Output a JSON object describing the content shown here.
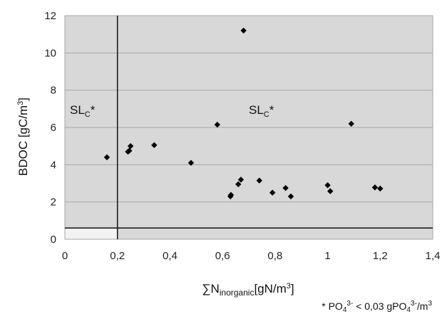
{
  "chart_data": {
    "type": "scatter",
    "xlabel_symbol": "∑N",
    "xlabel_sub": "inorganic",
    "xlabel_unit": "[gN/m",
    "xlabel_sup": "3",
    "xlabel_close": "]",
    "ylabel_main": "BDOC [gC/m",
    "ylabel_sup": "3",
    "ylabel_close": "]",
    "xlim": [
      0,
      1.4
    ],
    "ylim": [
      0,
      12
    ],
    "xticks": [
      "0",
      "0,2",
      "0,4",
      "0,6",
      "0,8",
      "1",
      "1,2",
      "1,4"
    ],
    "yticks": [
      "0",
      "2",
      "4",
      "6",
      "8",
      "10",
      "12"
    ],
    "grid": true,
    "threshold_x": 0.2,
    "threshold_y": 0.6,
    "regions": [
      {
        "label": "SL",
        "sub": "C",
        "suffix": "*"
      },
      {
        "label": "SL",
        "sub": "C",
        "suffix": "*"
      }
    ],
    "footnote": {
      "prefix": "* PO",
      "sub1": "4",
      "sup1": "3-",
      "mid": " < 0,03 gPO",
      "sub2": "4",
      "sup2": "3-",
      "end": "/m",
      "sup3": "3"
    },
    "points": [
      {
        "x": 0.16,
        "y": 4.4
      },
      {
        "x": 0.24,
        "y": 4.7
      },
      {
        "x": 0.245,
        "y": 4.75
      },
      {
        "x": 0.25,
        "y": 5.0
      },
      {
        "x": 0.34,
        "y": 5.05
      },
      {
        "x": 0.48,
        "y": 4.1
      },
      {
        "x": 0.58,
        "y": 6.15
      },
      {
        "x": 0.63,
        "y": 2.3
      },
      {
        "x": 0.632,
        "y": 2.38
      },
      {
        "x": 0.66,
        "y": 2.95
      },
      {
        "x": 0.67,
        "y": 3.2
      },
      {
        "x": 0.68,
        "y": 11.2
      },
      {
        "x": 0.74,
        "y": 3.15
      },
      {
        "x": 0.79,
        "y": 2.5
      },
      {
        "x": 0.84,
        "y": 2.75
      },
      {
        "x": 0.86,
        "y": 2.3
      },
      {
        "x": 1.0,
        "y": 2.9
      },
      {
        "x": 1.01,
        "y": 2.58
      },
      {
        "x": 1.09,
        "y": 6.2
      },
      {
        "x": 1.18,
        "y": 2.78
      },
      {
        "x": 1.2,
        "y": 2.72
      }
    ]
  }
}
